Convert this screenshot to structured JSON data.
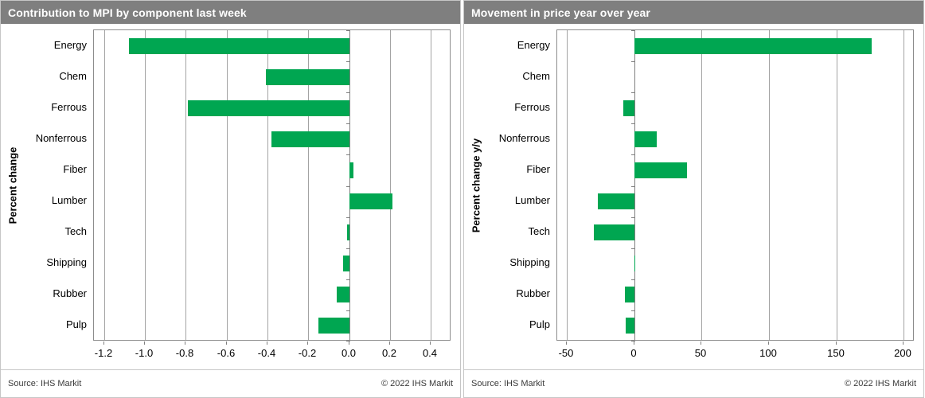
{
  "colors": {
    "bar_green": "#00A651",
    "title_bar_bg": "#7F7F7F",
    "title_text": "#FFFFFF",
    "gridline": "#A3A3A3",
    "axis": "#7F7F7F"
  },
  "chart_data": [
    {
      "type": "bar",
      "orientation": "horizontal",
      "title": "Contribution to MPI by component last week",
      "ylabel": "Percent change",
      "xlabel": "",
      "categories": [
        "Energy",
        "Chem",
        "Ferrous",
        "Nonferrous",
        "Fiber",
        "Lumber",
        "Tech",
        "Shipping",
        "Rubber",
        "Pulp"
      ],
      "values": [
        -1.08,
        -0.41,
        -0.79,
        -0.38,
        0.02,
        0.21,
        -0.01,
        -0.03,
        -0.06,
        -0.15
      ],
      "xlim": [
        -1.25,
        0.5
      ],
      "xticks": [
        -1.2,
        -1.0,
        -0.8,
        -0.6,
        -0.4,
        -0.2,
        0.0,
        0.2,
        0.4
      ],
      "xtick_labels": [
        "-1.2",
        "-1.0",
        "-0.8",
        "-0.6",
        "-0.4",
        "-0.2",
        "0.0",
        "0.2",
        "0.4"
      ],
      "grid": true,
      "legend": "none",
      "bar_color": "#00A651",
      "source": "Source: IHS Markit",
      "copyright": "© 2022  IHS Markit"
    },
    {
      "type": "bar",
      "orientation": "horizontal",
      "title": "Movement in price year over year",
      "ylabel": "Percent change y/y",
      "xlabel": "",
      "categories": [
        "Energy",
        "Chem",
        "Ferrous",
        "Nonferrous",
        "Fiber",
        "Lumber",
        "Tech",
        "Shipping",
        "Rubber",
        "Pulp"
      ],
      "values": [
        176,
        0,
        -8,
        17,
        39,
        -27,
        -30,
        1,
        -7,
        -6
      ],
      "xlim": [
        -57,
        208
      ],
      "xticks": [
        -50,
        0,
        50,
        100,
        150,
        200
      ],
      "xtick_labels": [
        "-50",
        "0",
        "50",
        "100",
        "150",
        "200"
      ],
      "grid": true,
      "legend": "none",
      "bar_color": "#00A651",
      "source": "Source: IHS Markit",
      "copyright": "© 2022  IHS Markit"
    }
  ]
}
